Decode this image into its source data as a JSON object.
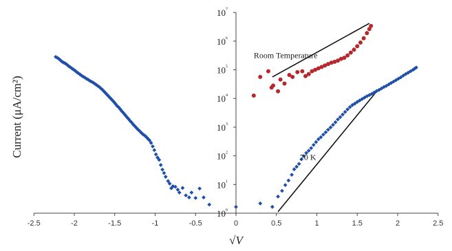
{
  "chart_data": {
    "type": "scatter",
    "title": "",
    "xlabel": "√V",
    "ylabel": "Current (μA/cm²)",
    "xlim": [
      -2.5,
      2.5
    ],
    "ylim_exponent": [
      0,
      7
    ],
    "y_scale": "log",
    "grid": false,
    "x_ticks": [
      "-2.5",
      "-2",
      "-1.5",
      "-1",
      "-0.5",
      "0",
      "0.5",
      "1",
      "1.5",
      "2",
      "2.5"
    ],
    "y_ticks": [
      {
        "base": "10",
        "exp": "0",
        "value": 0
      },
      {
        "base": "10",
        "exp": "1",
        "value": 1
      },
      {
        "base": "10",
        "exp": "2",
        "value": 2
      },
      {
        "base": "10",
        "exp": "3",
        "value": 3
      },
      {
        "base": "10",
        "exp": "4",
        "value": 4
      },
      {
        "base": "10",
        "exp": "5",
        "value": 5
      },
      {
        "base": "10",
        "exp": "6",
        "value": 6
      },
      {
        "base": "10",
        "exp": "7",
        "value": 7
      }
    ],
    "annotations": [
      {
        "text": "Room Temperature",
        "x": 0.22,
        "y_exp": 5.5
      },
      {
        "text": "70 K",
        "x": 0.79,
        "y_exp": 1.95
      }
    ],
    "series": [
      {
        "color": "#1f4fa8",
        "marker": "diamond",
        "points": [
          [
            -2.23,
            5.45
          ],
          [
            -2.21,
            5.42
          ],
          [
            -2.19,
            5.38
          ],
          [
            -2.17,
            5.33
          ],
          [
            -2.15,
            5.28
          ],
          [
            -2.13,
            5.25
          ],
          [
            -2.11,
            5.22
          ],
          [
            -2.09,
            5.18
          ],
          [
            -2.07,
            5.13
          ],
          [
            -2.05,
            5.09
          ],
          [
            -2.03,
            5.05
          ],
          [
            -2.01,
            5.01
          ],
          [
            -1.99,
            4.97
          ],
          [
            -1.97,
            4.92
          ],
          [
            -1.95,
            4.88
          ],
          [
            -1.93,
            4.84
          ],
          [
            -1.91,
            4.8
          ],
          [
            -1.89,
            4.76
          ],
          [
            -1.87,
            4.73
          ],
          [
            -1.85,
            4.69
          ],
          [
            -1.83,
            4.66
          ],
          [
            -1.81,
            4.62
          ],
          [
            -1.79,
            4.59
          ],
          [
            -1.77,
            4.56
          ],
          [
            -1.75,
            4.52
          ],
          [
            -1.73,
            4.48
          ],
          [
            -1.71,
            4.44
          ],
          [
            -1.69,
            4.4
          ],
          [
            -1.67,
            4.35
          ],
          [
            -1.65,
            4.3
          ],
          [
            -1.63,
            4.24
          ],
          [
            -1.61,
            4.18
          ],
          [
            -1.59,
            4.12
          ],
          [
            -1.57,
            4.06
          ],
          [
            -1.55,
            4.0
          ],
          [
            -1.53,
            3.94
          ],
          [
            -1.51,
            3.88
          ],
          [
            -1.49,
            3.81
          ],
          [
            -1.47,
            3.74
          ],
          [
            -1.45,
            3.69
          ],
          [
            -1.43,
            3.62
          ],
          [
            -1.41,
            3.55
          ],
          [
            -1.39,
            3.49
          ],
          [
            -1.37,
            3.42
          ],
          [
            -1.35,
            3.35
          ],
          [
            -1.33,
            3.29
          ],
          [
            -1.31,
            3.22
          ],
          [
            -1.29,
            3.16
          ],
          [
            -1.27,
            3.09
          ],
          [
            -1.25,
            3.03
          ],
          [
            -1.23,
            2.97
          ],
          [
            -1.21,
            2.91
          ],
          [
            -1.19,
            2.86
          ],
          [
            -1.17,
            2.8
          ],
          [
            -1.15,
            2.75
          ],
          [
            -1.13,
            2.71
          ],
          [
            -1.11,
            2.66
          ],
          [
            -1.09,
            2.6
          ],
          [
            -1.07,
            2.54
          ],
          [
            -1.05,
            2.45
          ],
          [
            -1.03,
            2.33
          ],
          [
            -1.01,
            2.2
          ],
          [
            -0.99,
            2.05
          ],
          [
            -0.97,
            1.94
          ],
          [
            -0.95,
            1.86
          ],
          [
            -0.93,
            1.68
          ],
          [
            -0.91,
            1.52
          ],
          [
            -0.89,
            1.4
          ],
          [
            -0.87,
            1.27
          ],
          [
            -0.84,
            1.12
          ],
          [
            -0.82,
            1.03
          ],
          [
            -0.8,
            0.87
          ],
          [
            -0.78,
            0.94
          ],
          [
            -0.75,
            0.92
          ],
          [
            -0.72,
            0.82
          ],
          [
            -0.7,
            0.72
          ],
          [
            -0.66,
            0.88
          ],
          [
            -0.62,
            0.62
          ],
          [
            -0.58,
            0.55
          ],
          [
            -0.55,
            0.72
          ],
          [
            -0.5,
            0.53
          ],
          [
            -0.45,
            0.86
          ],
          [
            -0.4,
            0.55
          ],
          [
            -0.33,
            0.3
          ],
          [
            0.0,
            0.22
          ],
          [
            0.3,
            0.34
          ],
          [
            0.45,
            0.22
          ],
          [
            0.52,
            0.58
          ],
          [
            0.57,
            0.78
          ],
          [
            0.61,
            0.98
          ],
          [
            0.65,
            1.14
          ],
          [
            0.69,
            1.34
          ],
          [
            0.72,
            1.53
          ],
          [
            0.75,
            1.62
          ],
          [
            0.78,
            1.72
          ],
          [
            0.81,
            1.88
          ],
          [
            0.84,
            1.99
          ],
          [
            0.87,
            2.1
          ],
          [
            0.9,
            2.18
          ],
          [
            0.93,
            2.27
          ],
          [
            0.96,
            2.38
          ],
          [
            0.99,
            2.48
          ],
          [
            1.02,
            2.58
          ],
          [
            1.05,
            2.65
          ],
          [
            1.08,
            2.74
          ],
          [
            1.11,
            2.82
          ],
          [
            1.14,
            2.91
          ],
          [
            1.17,
            2.99
          ],
          [
            1.2,
            3.08
          ],
          [
            1.23,
            3.17
          ],
          [
            1.26,
            3.27
          ],
          [
            1.29,
            3.35
          ],
          [
            1.32,
            3.44
          ],
          [
            1.35,
            3.53
          ],
          [
            1.38,
            3.62
          ],
          [
            1.41,
            3.7
          ],
          [
            1.44,
            3.77
          ],
          [
            1.47,
            3.82
          ],
          [
            1.5,
            3.88
          ],
          [
            1.53,
            3.93
          ],
          [
            1.56,
            3.98
          ],
          [
            1.59,
            4.03
          ],
          [
            1.62,
            4.08
          ],
          [
            1.65,
            4.12
          ],
          [
            1.68,
            4.16
          ],
          [
            1.71,
            4.21
          ],
          [
            1.74,
            4.26
          ],
          [
            1.77,
            4.3
          ],
          [
            1.8,
            4.35
          ],
          [
            1.83,
            4.4
          ],
          [
            1.86,
            4.44
          ],
          [
            1.89,
            4.49
          ],
          [
            1.92,
            4.54
          ],
          [
            1.95,
            4.59
          ],
          [
            1.98,
            4.64
          ],
          [
            2.01,
            4.69
          ],
          [
            2.04,
            4.74
          ],
          [
            2.07,
            4.8
          ],
          [
            2.1,
            4.85
          ],
          [
            2.13,
            4.9
          ],
          [
            2.16,
            4.95
          ],
          [
            2.19,
            5.0
          ],
          [
            2.21,
            5.04
          ],
          [
            2.23,
            5.08
          ]
        ]
      },
      {
        "color": "#b5282b",
        "marker": "circle",
        "points": [
          [
            0.22,
            4.1
          ],
          [
            0.3,
            4.75
          ],
          [
            0.4,
            4.95
          ],
          [
            0.44,
            4.38
          ],
          [
            0.46,
            4.45
          ],
          [
            0.52,
            4.25
          ],
          [
            0.55,
            4.66
          ],
          [
            0.6,
            4.52
          ],
          [
            0.66,
            4.82
          ],
          [
            0.7,
            4.75
          ],
          [
            0.76,
            4.92
          ],
          [
            0.82,
            4.95
          ],
          [
            0.86,
            4.78
          ],
          [
            0.9,
            4.85
          ],
          [
            0.94,
            4.95
          ],
          [
            0.98,
            5.0
          ],
          [
            1.02,
            5.05
          ],
          [
            1.06,
            5.1
          ],
          [
            1.1,
            5.15
          ],
          [
            1.14,
            5.2
          ],
          [
            1.18,
            5.25
          ],
          [
            1.22,
            5.28
          ],
          [
            1.26,
            5.32
          ],
          [
            1.3,
            5.38
          ],
          [
            1.34,
            5.42
          ],
          [
            1.38,
            5.5
          ],
          [
            1.42,
            5.6
          ],
          [
            1.46,
            5.7
          ],
          [
            1.5,
            5.82
          ],
          [
            1.54,
            5.95
          ],
          [
            1.58,
            6.1
          ],
          [
            1.62,
            6.28
          ],
          [
            1.65,
            6.42
          ],
          [
            1.67,
            6.53
          ]
        ]
      }
    ],
    "fit_lines": [
      {
        "color": "#111111",
        "from": [
          0.45,
          4.75
        ],
        "to": [
          1.65,
          6.62
        ]
      },
      {
        "color": "#111111",
        "from": [
          0.52,
          0.05
        ],
        "to": [
          1.75,
          4.28
        ]
      }
    ]
  }
}
